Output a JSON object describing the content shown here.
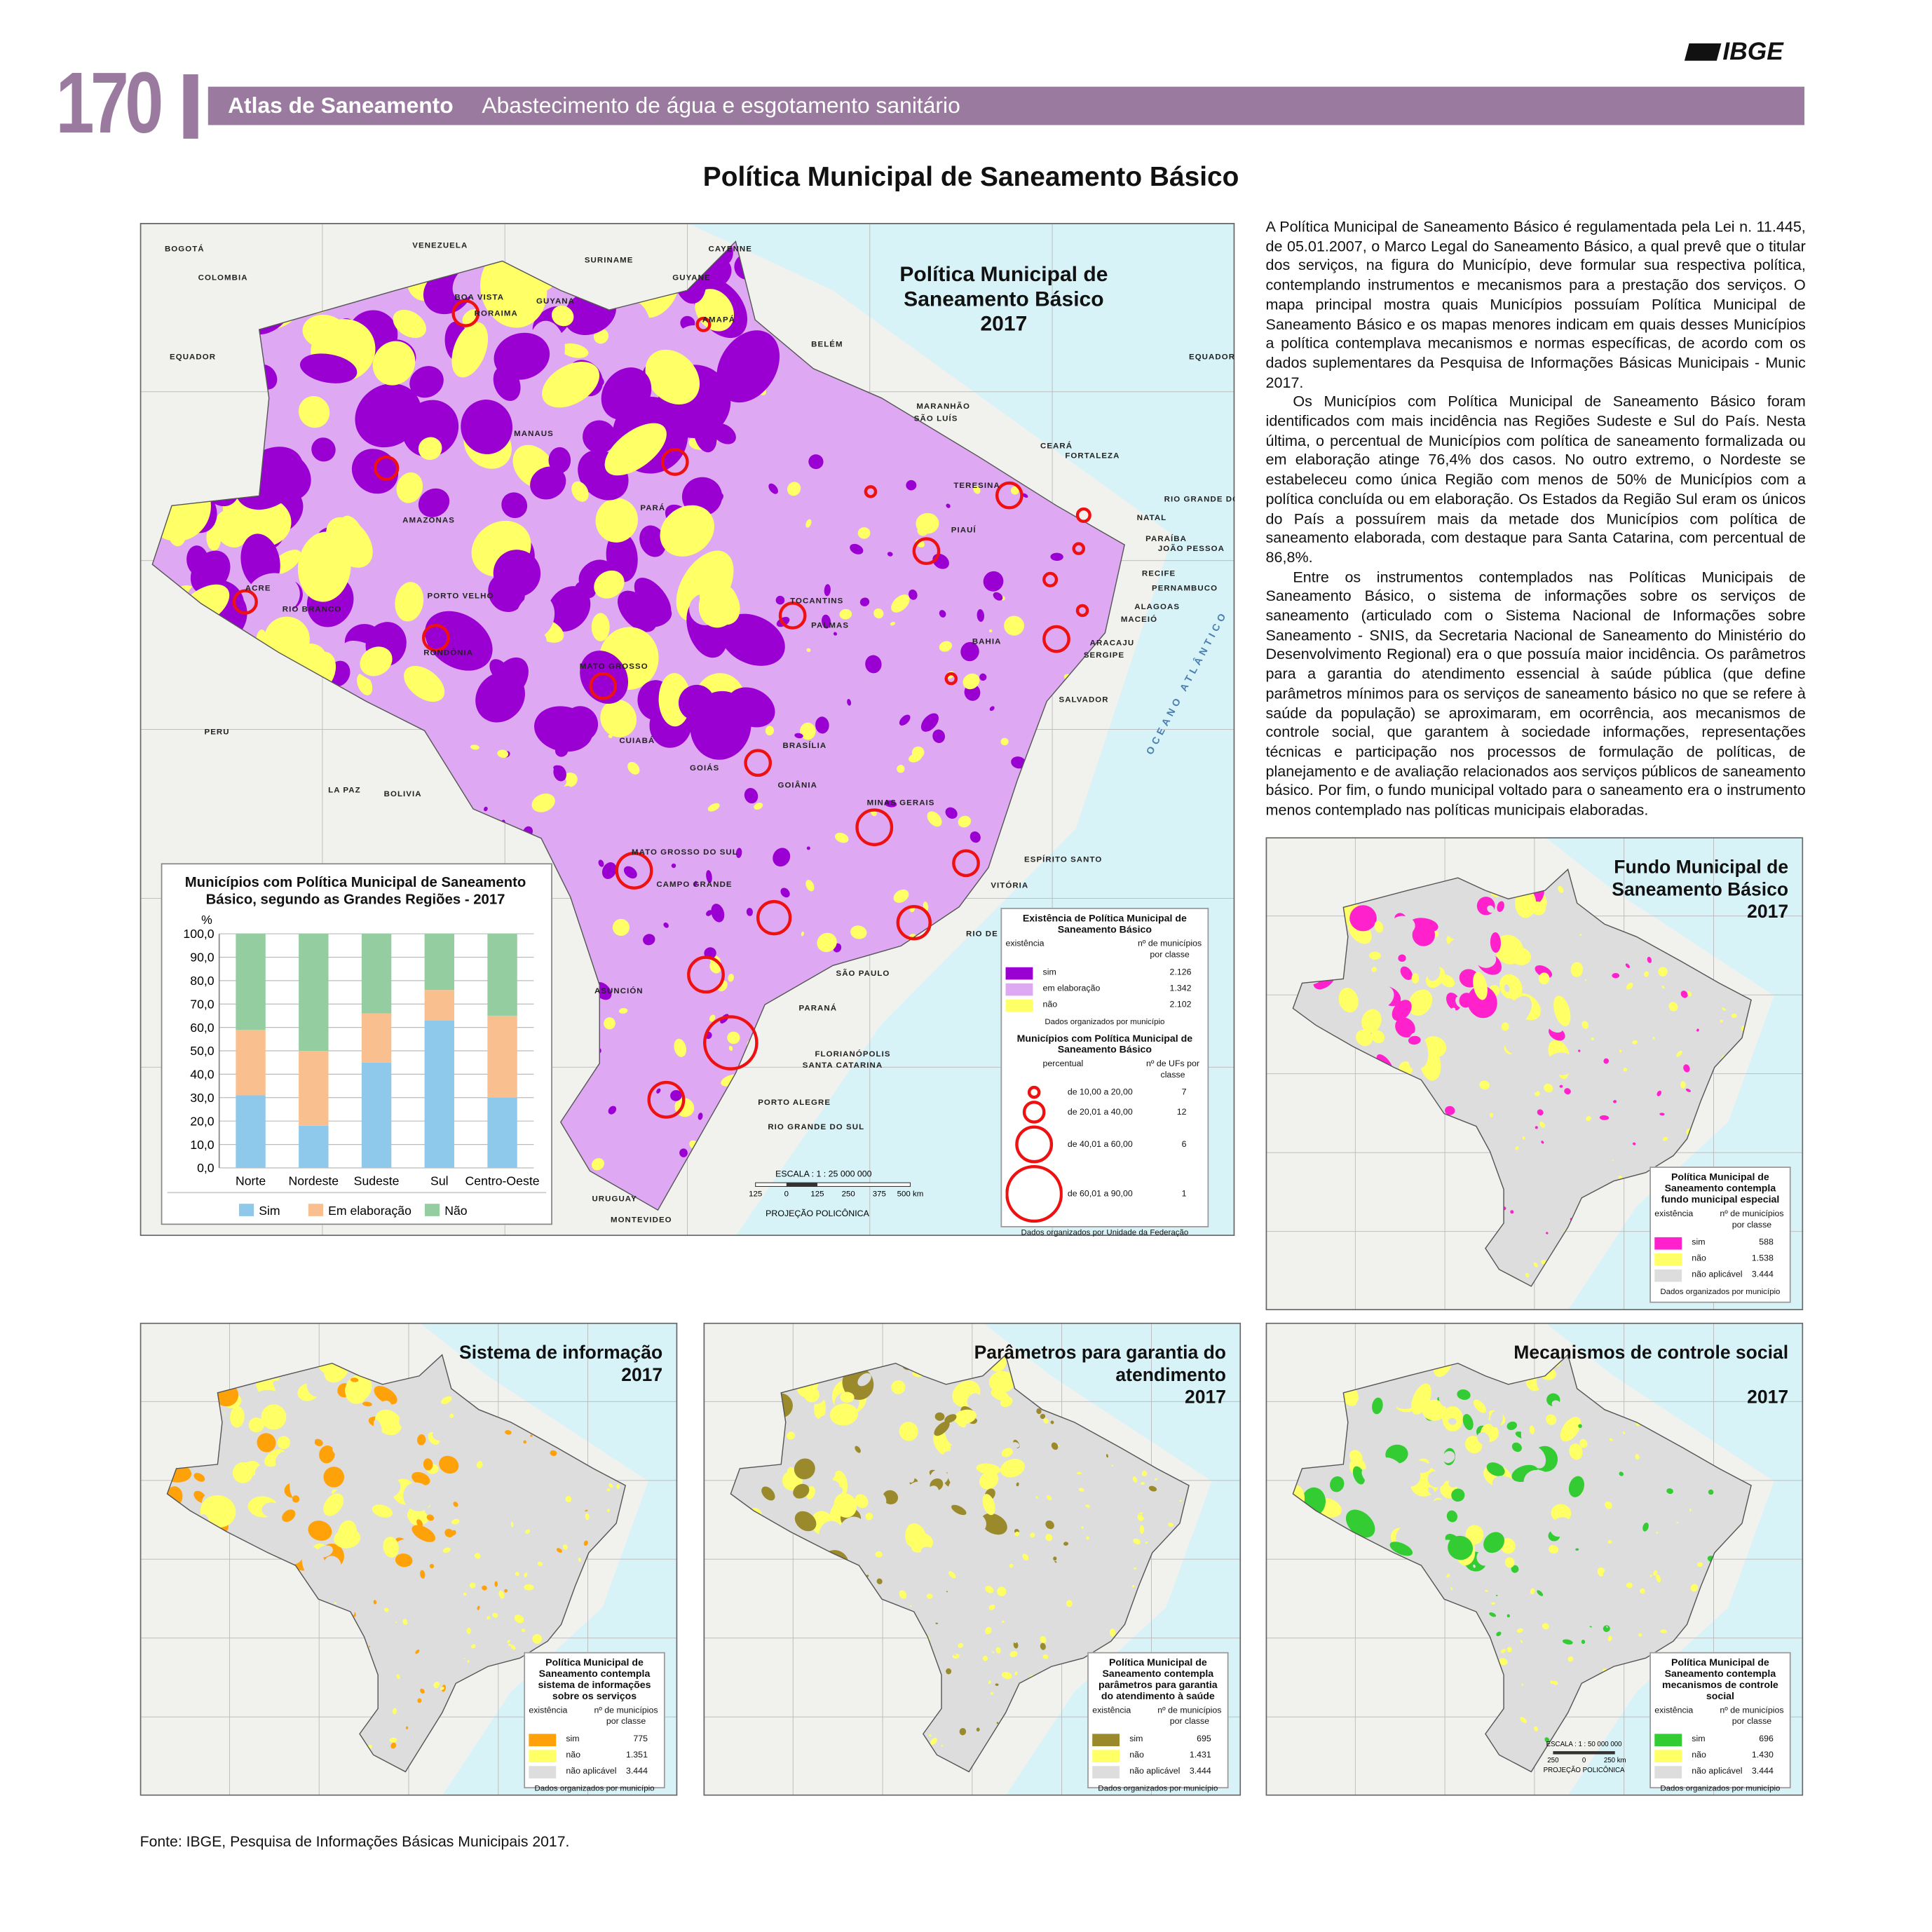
{
  "header": {
    "page_number": "170",
    "logo": "IBGE",
    "section": "Atlas de Saneamento",
    "subsection": "Abastecimento de água e esgotamento sanitário"
  },
  "title": "Política Municipal de Saneamento Básico",
  "text": {
    "paragraphs": [
      "A Política Municipal de Saneamento Básico é regulamentada pela Lei n. 11.445, de 05.01.2007, o Marco Legal do Saneamento Básico, a qual prevê que o titular dos serviços, na figura do Município, deve formular sua respectiva política, contemplando instrumentos e mecanismos para a prestação dos serviços. O mapa principal mostra quais Municípios possuíam Política Municipal de Saneamento Básico e os mapas menores indicam em quais desses Municípios a política contemplava mecanismos e normas específicas, de acordo com os dados suplementares da Pesquisa de Informações Básicas Municipais - Munic 2017.",
      "Os Municípios com Política Municipal de Saneamento Básico foram identificados com mais incidência nas Regiões Sudeste e Sul do País. Nesta última, o percentual de Municípios com política de saneamento formalizada ou em elaboração atinge 76,4% dos casos. No outro extremo, o Nordeste se estabeleceu como única Região com menos de 50% de Municípios com a política concluída ou em elaboração. Os Estados da Região Sul eram os únicos do País a possuírem mais da metade dos Municípios com política de saneamento elaborada, com destaque para Santa Catarina, com percentual de 86,8%.",
      "Entre os instrumentos contemplados nas Políticas Municipais de Saneamento Básico, o sistema de informações sobre os serviços de saneamento (articulado com o Sistema Nacional de Informações sobre Saneamento - SNIS, da Secretaria Nacional de Saneamento do Ministério do Desenvolvimento Regional) era o que possuía maior incidência. Os parâmetros para a garantia do atendimento essencial à saúde pública (que define parâmetros mínimos para os serviços de saneamento básico no que se refere à saúde da população) se aproximaram, em ocorrência, aos mecanismos de controle social, que garantem à sociedade informações, representações técnicas e participação nos processos de formulação de políticas, de planejamento e de avaliação relacionados aos serviços públicos de saneamento básico. Por fim, o fundo municipal voltado para o saneamento era o instrumento menos contemplado nas políticas municipais elaboradas."
    ]
  },
  "main_map": {
    "title": "Política Municipal de Saneamento Básico",
    "year": "2017",
    "labels": [
      "VENEZUELA",
      "COLOMBIA",
      "GUYANA",
      "SURINAME",
      "GUYANE",
      "BOGOTÁ",
      "CAYENNE",
      "EQUADOR",
      "EQUADOR",
      "RORAIMA",
      "BOA VISTA",
      "AMAPÁ",
      "MARANHÃO",
      "SÃO LUÍS",
      "CEARÁ",
      "FORTALEZA",
      "RIO GRANDE DO NORTE",
      "NATAL",
      "PARAÍBA",
      "JOÃO PESSOA",
      "PIAUÍ",
      "TERESINA",
      "RECIFE",
      "PERNAMBUCO",
      "ALAGOAS",
      "MACEIÓ",
      "ARACAJU",
      "SERGIPE",
      "BAHIA",
      "SALVADOR",
      "AMAZONAS",
      "MANAUS",
      "PARÁ",
      "BELÉM",
      "ACRE",
      "RIO BRANCO",
      "RONDÔNIA",
      "PORTO VELHO",
      "TOCANTINS",
      "PALMAS",
      "MATO GROSSO",
      "CUIABÁ",
      "GOIÁS",
      "GOIÂNIA",
      "BRASÍLIA",
      "MINAS GERAIS",
      "ESPÍRITO SANTO",
      "VITÓRIA",
      "RIO DE JANEIRO",
      "SÃO PAULO",
      "PARANÁ",
      "FLORIANÓPOLIS",
      "SANTA CATARINA",
      "PORTO ALEGRE",
      "RIO GRANDE DO SUL",
      "MATO GROSSO DO SUL",
      "CAMPO GRANDE",
      "PERU",
      "BOLIVIA",
      "LA PAZ",
      "ASUNCIÓN",
      "URUGUAY",
      "MONTEVIDEO",
      "OCEANO ATLÂNTICO"
    ],
    "scale": "ESCALA : 1 : 25 000 000",
    "scale_ticks": [
      "125",
      "0",
      "125",
      "250",
      "375",
      "500 km"
    ],
    "projection": "PROJEÇÃO POLICÔNICA",
    "legend": {
      "title": "Existência de Política Municipal de Saneamento Básico",
      "col1": "existência",
      "col2": "nº de municípios por classe",
      "rows": [
        {
          "label": "sim",
          "count": "2.126",
          "color": "#9b00d3"
        },
        {
          "label": "em elaboração",
          "count": "1.342",
          "color": "#dfa8f2"
        },
        {
          "label": "não",
          "count": "2.102",
          "color": "#ffff66"
        }
      ],
      "note": "Dados organizados por município"
    },
    "circle_legend": {
      "title": "Municípios com Política Municipal de Saneamento Básico",
      "col1": "percentual",
      "col2": "nº de UFs por classe",
      "rows": [
        {
          "label": "de 10,00 a 20,00",
          "count": "7"
        },
        {
          "label": "de 20,01 a 40,00",
          "count": "12"
        },
        {
          "label": "de 40,01 a 60,00",
          "count": "6"
        },
        {
          "label": "de 60,01 a 90,00",
          "count": "1"
        }
      ],
      "note": "Dados organizados por Unidade da Federação"
    }
  },
  "chart_data": {
    "type": "bar",
    "stacked": true,
    "title": "Municípios com Política Municipal de Saneamento Básico, segundo as Grandes Regiões - 2017",
    "y_label": "%",
    "categories": [
      "Norte",
      "Nordeste",
      "Sudeste",
      "Sul",
      "Centro-Oeste"
    ],
    "series": [
      {
        "name": "Sim",
        "color": "#8ec8ea",
        "values": [
          31,
          18,
          45,
          63,
          30
        ]
      },
      {
        "name": "Em elaboração",
        "color": "#f9bf8f",
        "values": [
          28,
          32,
          21,
          13,
          35
        ]
      },
      {
        "name": "Não",
        "color": "#93cda0",
        "values": [
          41,
          50,
          34,
          24,
          35
        ]
      }
    ],
    "ylim": [
      0,
      100
    ],
    "yticks": [
      {
        "value": 0,
        "label": "0,0"
      },
      {
        "value": 10,
        "label": "10,0"
      },
      {
        "value": 20,
        "label": "20,0"
      },
      {
        "value": 30,
        "label": "30,0"
      },
      {
        "value": 40,
        "label": "40,0"
      },
      {
        "value": 50,
        "label": "50,0"
      },
      {
        "value": 60,
        "label": "60,0"
      },
      {
        "value": 70,
        "label": "70,0"
      },
      {
        "value": 80,
        "label": "80,0"
      },
      {
        "value": 90,
        "label": "90,0"
      },
      {
        "value": 100,
        "label": "100,0"
      }
    ],
    "grid": true,
    "legend": "bottom"
  },
  "small_maps": [
    {
      "title": "Fundo Municipal de Saneamento Básico",
      "year": "2017",
      "legend": {
        "title": "Política Municipal de Saneamento contempla fundo municipal especial",
        "col1": "existência",
        "col2": "nº de municípios por classe",
        "rows": [
          {
            "label": "sim",
            "count": "588",
            "color": "#ff22cc"
          },
          {
            "label": "não",
            "count": "1.538",
            "color": "#ffff66"
          },
          {
            "label": "não aplicável",
            "count": "3.444",
            "color": "#dddddd"
          }
        ],
        "note": "Dados organizados por município"
      }
    },
    {
      "title": "Sistema de informação",
      "year": "2017",
      "legend": {
        "title": "Política Municipal de Saneamento contempla sistema de informações sobre os serviços",
        "col1": "existência",
        "col2": "nº de municípios por classe",
        "rows": [
          {
            "label": "sim",
            "count": "775",
            "color": "#ffa20a"
          },
          {
            "label": "não",
            "count": "1.351",
            "color": "#ffff66"
          },
          {
            "label": "não aplicável",
            "count": "3.444",
            "color": "#dddddd"
          }
        ],
        "note": "Dados organizados por município"
      }
    },
    {
      "title": "Parâmetros para garantia do atendimento",
      "year": "2017",
      "legend": {
        "title": "Política Municipal de Saneamento contempla parâmetros para garantia do atendimento à saúde",
        "col1": "existência",
        "col2": "nº de municípios por classe",
        "rows": [
          {
            "label": "sim",
            "count": "695",
            "color": "#9b8a2c"
          },
          {
            "label": "não",
            "count": "1.431",
            "color": "#ffff66"
          },
          {
            "label": "não aplicável",
            "count": "3.444",
            "color": "#dddddd"
          }
        ],
        "note": "Dados organizados por município"
      }
    },
    {
      "title": "Mecanismos de controle social",
      "year": "2017",
      "scale": "ESCALA : 1 : 50 000 000",
      "scale_ticks": [
        "250",
        "0",
        "250 km"
      ],
      "projection": "PROJEÇÃO POLICÔNICA",
      "legend": {
        "title": "Política Municipal de Saneamento contempla mecanismos de controle social",
        "col1": "existência",
        "col2": "nº de municípios por classe",
        "rows": [
          {
            "label": "sim",
            "count": "696",
            "color": "#33cc33"
          },
          {
            "label": "não",
            "count": "1.430",
            "color": "#ffff66"
          },
          {
            "label": "não aplicável",
            "count": "3.444",
            "color": "#dddddd"
          }
        ],
        "note": "Dados organizados por município"
      }
    }
  ],
  "source": "Fonte: IBGE, Pesquisa de Informações Básicas Municipais 2017."
}
